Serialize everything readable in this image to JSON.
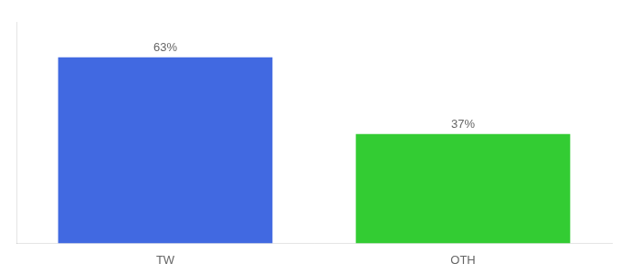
{
  "chart_data": {
    "type": "bar",
    "categories": [
      "TW",
      "OTH"
    ],
    "values": [
      63,
      37
    ],
    "value_labels": [
      "63%",
      "37%"
    ],
    "data_labels": true,
    "colors": [
      "#4169e1",
      "#33cc33"
    ],
    "ylim": [
      0,
      75
    ],
    "grid": false,
    "tick_labels": "x"
  }
}
